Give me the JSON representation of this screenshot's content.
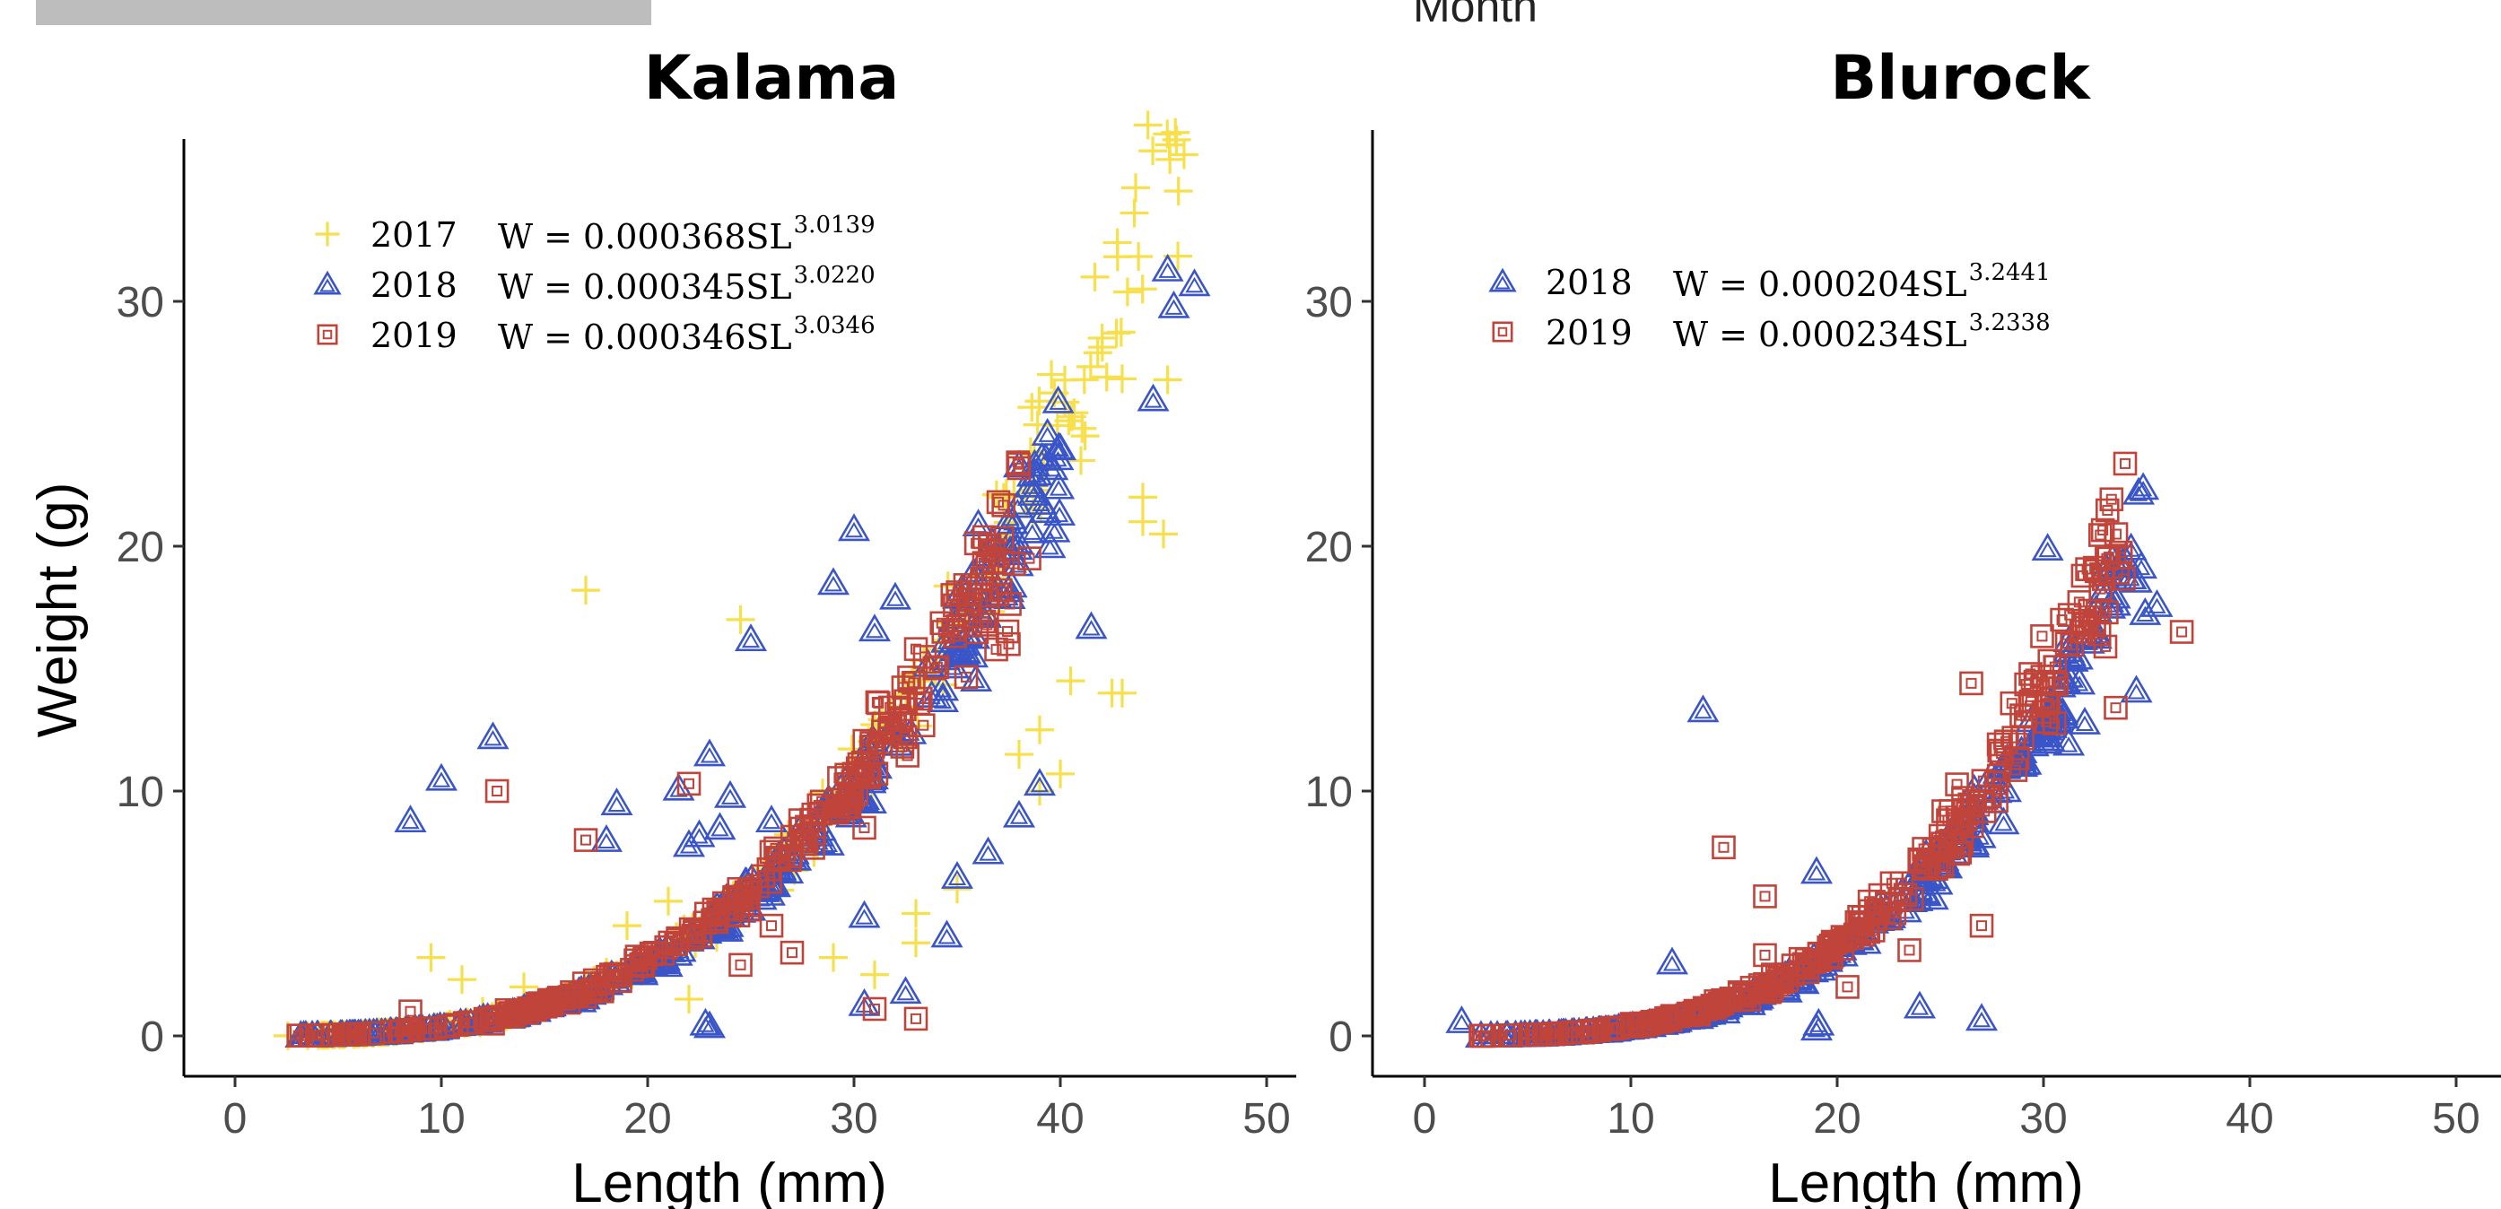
{
  "header": {
    "month_text": "Month"
  },
  "chart_data": [
    {
      "type": "scatter",
      "title": "Kalama",
      "xlabel": "Length (mm)",
      "ylabel": "Weight (g)",
      "xlim": [
        0,
        50
      ],
      "ylim": [
        0,
        35
      ],
      "xticks": [
        "0",
        "10",
        "20",
        "30",
        "40",
        "50"
      ],
      "yticks": [
        "0",
        "10",
        "20",
        "30"
      ],
      "grid": false,
      "legend_position": "top-left",
      "series": [
        {
          "name": "2017",
          "marker": "cross",
          "color": "#f7e04b",
          "equation": "W = 0.000368SL",
          "exponent": "3.0139",
          "a": 0.000368,
          "b": 3.0139,
          "range": [
            2.5,
            46
          ],
          "outliers": [
            [
              17,
              18.2
            ],
            [
              24.5,
              17
            ],
            [
              9.5,
              3.2
            ],
            [
              11,
              2.3
            ],
            [
              14,
              2
            ],
            [
              12,
              1
            ],
            [
              18,
              2.6
            ],
            [
              42.5,
              14
            ],
            [
              44,
              21
            ],
            [
              45,
              20.5
            ],
            [
              44,
              22
            ],
            [
              45.2,
              26.8
            ],
            [
              41,
              23.5
            ],
            [
              41.2,
              24.5
            ],
            [
              39,
              10
            ],
            [
              40,
              10.7
            ],
            [
              38,
              11.5
            ],
            [
              39,
              12.5
            ],
            [
              35,
              6
            ],
            [
              33,
              3.8
            ],
            [
              29,
              3.2
            ],
            [
              22,
              1.5
            ],
            [
              19,
              4.5
            ],
            [
              21,
              5.5
            ],
            [
              43,
              14
            ],
            [
              40.5,
              14.5
            ],
            [
              33,
              5
            ],
            [
              31,
              2.5
            ]
          ]
        },
        {
          "name": "2018",
          "marker": "triangle",
          "color": "#3a55c8",
          "equation": "W = 0.000345SL",
          "exponent": "3.0220",
          "a": 0.000345,
          "b": 3.022,
          "range": [
            3,
            40
          ],
          "outliers": [
            [
              8.5,
              8.8
            ],
            [
              10,
              10.5
            ],
            [
              12.5,
              12.2
            ],
            [
              18,
              8
            ],
            [
              18.5,
              9.5
            ],
            [
              22,
              7.8
            ],
            [
              23,
              11.5
            ],
            [
              25,
              16.2
            ],
            [
              29,
              18.5
            ],
            [
              30,
              20.7
            ],
            [
              31,
              16.6
            ],
            [
              32,
              17.9
            ],
            [
              22.5,
              8.2
            ],
            [
              22.8,
              0.5
            ],
            [
              23,
              0.4
            ],
            [
              30.5,
              1.3
            ],
            [
              32.5,
              1.8
            ],
            [
              30.5,
              4.9
            ],
            [
              34.5,
              4.1
            ],
            [
              35,
              6.5
            ],
            [
              36.5,
              7.5
            ],
            [
              38,
              9
            ],
            [
              39,
              10.3
            ],
            [
              40,
              24
            ],
            [
              38,
              23.3
            ],
            [
              39.5,
              20
            ],
            [
              41.5,
              16.7
            ],
            [
              44.5,
              26
            ],
            [
              45.2,
              31.3
            ],
            [
              46.5,
              30.7
            ],
            [
              45.5,
              29.8
            ],
            [
              26,
              8.8
            ],
            [
              24,
              9.8
            ],
            [
              21.5,
              10.1
            ],
            [
              23.5,
              8.5
            ]
          ]
        },
        {
          "name": "2019",
          "marker": "square",
          "color": "#c0443a",
          "equation": "W = 0.000346SL",
          "exponent": "3.0346",
          "a": 0.000346,
          "b": 3.0346,
          "range": [
            3,
            38
          ],
          "outliers": [
            [
              12.7,
              10
            ],
            [
              17,
              8
            ],
            [
              22,
              10.3
            ],
            [
              8.5,
              1
            ],
            [
              12.5,
              0.5
            ],
            [
              24.5,
              2.9
            ],
            [
              27,
              3.4
            ],
            [
              31,
              1.1
            ],
            [
              33,
              0.7
            ],
            [
              37,
              21.8
            ],
            [
              38.5,
              19.5
            ],
            [
              37.5,
              16
            ],
            [
              30.5,
              8.5
            ],
            [
              33,
              15.8
            ],
            [
              26,
              4.5
            ]
          ]
        }
      ]
    },
    {
      "type": "scatter",
      "title": "Blurock",
      "xlabel": "Length (mm)",
      "ylabel": "",
      "xlim": [
        0,
        50
      ],
      "ylim": [
        0,
        35
      ],
      "xticks": [
        "0",
        "10",
        "20",
        "30",
        "40",
        "50"
      ],
      "yticks": [
        "0",
        "10",
        "20",
        "30"
      ],
      "grid": false,
      "legend_position": "top-left",
      "series": [
        {
          "name": "2018",
          "marker": "triangle",
          "color": "#3a55c8",
          "equation": "W = 0.000204SL",
          "exponent": "3.2441",
          "a": 0.000204,
          "b": 3.2441,
          "range": [
            2,
            35
          ],
          "outliers": [
            [
              1.8,
              0.6
            ],
            [
              13.5,
              13.3
            ],
            [
              12,
              3
            ],
            [
              19,
              6.7
            ],
            [
              19,
              0.3
            ],
            [
              19.1,
              0.5
            ],
            [
              24,
              1.2
            ],
            [
              27,
              0.7
            ],
            [
              30.2,
              19.9
            ],
            [
              35.5,
              17.6
            ],
            [
              34.5,
              14.1
            ],
            [
              32,
              12.8
            ],
            [
              26,
              8.8
            ]
          ]
        },
        {
          "name": "2019",
          "marker": "square",
          "color": "#c0443a",
          "equation": "W = 0.000234SL",
          "exponent": "3.2338",
          "a": 0.000234,
          "b": 3.2338,
          "range": [
            2.5,
            34
          ],
          "outliers": [
            [
              14.5,
              7.7
            ],
            [
              16.5,
              5.7
            ],
            [
              26.5,
              14.4
            ],
            [
              33,
              15.9
            ],
            [
              36.7,
              16.5
            ],
            [
              27,
              4.5
            ],
            [
              20.5,
              2
            ],
            [
              23.5,
              3.5
            ],
            [
              16.5,
              3.3
            ],
            [
              33.5,
              13.4
            ]
          ]
        }
      ]
    }
  ]
}
